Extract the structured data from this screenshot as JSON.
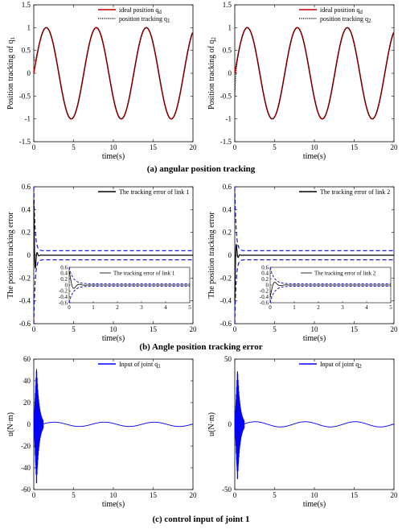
{
  "captions": {
    "a": "(a) angular position tracking",
    "b": "(b) Angle position tracking error",
    "c": "(c) control input of joint 1"
  },
  "colors": {
    "ideal": "#c00000",
    "tracking": "#000000",
    "error": "#000000",
    "bound": "#0000cc",
    "input": "#0000ff"
  },
  "chart_data": [
    {
      "id": "pos_q1",
      "type": "line",
      "xlabel": "time(s)",
      "ylabel": "Position tracking of q1",
      "xlim": [
        0,
        20
      ],
      "ylim": [
        -1.5,
        1.5
      ],
      "xticks": [
        0,
        5,
        10,
        15,
        20
      ],
      "yticks": [
        -1.5,
        -1,
        -0.5,
        0,
        0.5,
        1,
        1.5
      ],
      "grid": false,
      "legend_position": "top-right",
      "series": [
        {
          "name": "ideal position qd",
          "function": "sin(t)",
          "style": "solid"
        },
        {
          "name": "position tracking q1",
          "function": "sin(t) with initial offset 0.4 at t=0 converging by t≈0.5",
          "style": "dotted"
        }
      ]
    },
    {
      "id": "pos_q2",
      "type": "line",
      "xlabel": "time(s)",
      "ylabel": "Position tracking of q2",
      "xlim": [
        0,
        20
      ],
      "ylim": [
        -1.5,
        1.5
      ],
      "xticks": [
        0,
        5,
        10,
        15,
        20
      ],
      "yticks": [
        -1.5,
        -1,
        -0.5,
        0,
        0.5,
        1,
        1.5
      ],
      "grid": false,
      "legend_position": "top-right",
      "series": [
        {
          "name": "ideal position qd",
          "function": "sin(t)",
          "style": "solid"
        },
        {
          "name": "position tracking q2",
          "function": "sin(t) with initial offset -0.5 at t=0 converging by t≈0.5",
          "style": "dotted"
        }
      ]
    },
    {
      "id": "err_link1",
      "type": "line",
      "xlabel": "time(s)",
      "ylabel": "The position tracking error",
      "xlim": [
        0,
        20
      ],
      "ylim": [
        -0.6,
        0.6
      ],
      "xticks": [
        0,
        5,
        10,
        15,
        20
      ],
      "yticks": [
        -0.6,
        -0.4,
        -0.2,
        0,
        0.2,
        0.4,
        0.6
      ],
      "grid": false,
      "legend_position": "top-right",
      "series": [
        {
          "name": "The tracking error of link 1",
          "style": "solid"
        }
      ],
      "bounds": {
        "start": 0.6,
        "end": 0.04,
        "style": "dashed"
      },
      "inset": {
        "legend": "The tracking error of link 1",
        "xlim": [
          0,
          5
        ],
        "ylim": [
          -0.6,
          0.6
        ],
        "xticks": [
          0,
          1,
          2,
          3,
          4,
          5
        ],
        "yticks": [
          -0.6,
          -0.4,
          -0.2,
          0,
          0.2,
          0.4,
          0.6
        ],
        "yticklabels": [
          "-0.6",
          "-0.4",
          "-0.2",
          "0",
          "0.2",
          "0.4",
          "0.6"
        ]
      }
    },
    {
      "id": "err_link2",
      "type": "line",
      "xlabel": "time(s)",
      "ylabel": "The position tracking error",
      "xlim": [
        0,
        20
      ],
      "ylim": [
        -0.6,
        0.6
      ],
      "xticks": [
        0,
        5,
        10,
        15,
        20
      ],
      "yticks": [
        -0.6,
        -0.4,
        -0.2,
        0,
        0.2,
        0.4,
        0.6
      ],
      "grid": false,
      "legend_position": "top-right",
      "series": [
        {
          "name": "The tracking error of link 2",
          "style": "solid"
        }
      ],
      "bounds": {
        "start": 0.6,
        "end": 0.04,
        "style": "dashed"
      },
      "inset": {
        "legend": "The tracking error of link 2",
        "xlim": [
          0,
          5
        ],
        "ylim": [
          -0.6,
          0.6
        ],
        "xticks": [
          0,
          1,
          2,
          3,
          4,
          5
        ],
        "yticks": [
          -0.6,
          -0.4,
          -0.2,
          0,
          0.2,
          0.4,
          0.6
        ],
        "yticklabels": [
          "-0.6",
          "-0.4",
          "-0.2",
          "0",
          "0.2",
          "0.4",
          "0.6"
        ]
      }
    },
    {
      "id": "input_q1",
      "type": "line",
      "xlabel": "time(s)",
      "ylabel": "u(N·m)",
      "xlim": [
        0,
        20
      ],
      "ylim": [
        -60,
        60
      ],
      "xticks": [
        0,
        5,
        10,
        15,
        20
      ],
      "yticks": [
        -60,
        -40,
        -20,
        0,
        20,
        40,
        60
      ],
      "grid": false,
      "legend_position": "top-right",
      "series": [
        {
          "name": "Input of joint q1",
          "peak_max": 55,
          "peak_min": -58,
          "steady_amplitude": 2,
          "style": "solid"
        }
      ]
    },
    {
      "id": "input_q2",
      "type": "line",
      "xlabel": "time(s)",
      "ylabel": "u(N·m)",
      "xlim": [
        0,
        20
      ],
      "ylim": [
        -50,
        50
      ],
      "xticks": [
        0,
        5,
        10,
        15,
        20
      ],
      "yticks": [
        -50,
        0,
        50
      ],
      "grid": false,
      "legend_position": "top-right",
      "series": [
        {
          "name": "Input of joint q2",
          "peak_max": 44,
          "peak_min": -45,
          "steady_amplitude": 2,
          "style": "solid"
        }
      ]
    }
  ]
}
